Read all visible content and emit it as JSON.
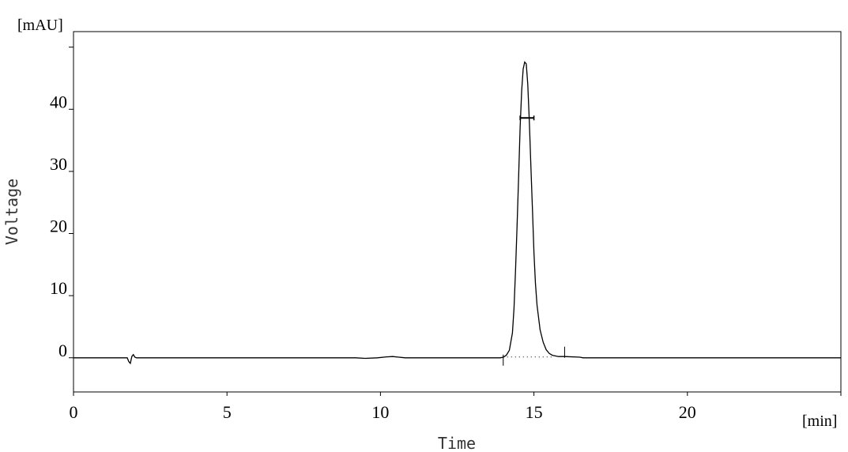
{
  "chart_data": {
    "type": "line",
    "xlabel": "Time",
    "ylabel": "Voltage",
    "x_unit": "[min]",
    "y_unit": "[mAU]",
    "xlim": [
      0,
      25
    ],
    "ylim": [
      -5.5,
      52.5
    ],
    "x_ticks": [
      0,
      5,
      10,
      15,
      20
    ],
    "y_ticks": [
      0,
      10,
      20,
      30,
      40
    ],
    "y_unlabeled_ticks": [
      50
    ],
    "grid": false,
    "line_color": "#000000",
    "series": [
      {
        "points": [
          [
            0,
            0
          ],
          [
            1.75,
            0
          ],
          [
            1.8,
            -0.6
          ],
          [
            1.85,
            -0.9
          ],
          [
            1.9,
            0.2
          ],
          [
            1.95,
            0.5
          ],
          [
            2.0,
            0.1
          ],
          [
            2.05,
            0
          ],
          [
            9.2,
            0
          ],
          [
            9.5,
            -0.1
          ],
          [
            9.9,
            0
          ],
          [
            10.2,
            0.15
          ],
          [
            10.4,
            0.2
          ],
          [
            10.6,
            0.1
          ],
          [
            10.8,
            0
          ],
          [
            13.9,
            0
          ],
          [
            14.0,
            0.1
          ],
          [
            14.1,
            0.4
          ],
          [
            14.2,
            1.2
          ],
          [
            14.3,
            4
          ],
          [
            14.35,
            8
          ],
          [
            14.4,
            14
          ],
          [
            14.45,
            21
          ],
          [
            14.5,
            29
          ],
          [
            14.55,
            37
          ],
          [
            14.6,
            43
          ],
          [
            14.65,
            46.5
          ],
          [
            14.7,
            47.6
          ],
          [
            14.75,
            47.3
          ],
          [
            14.8,
            44
          ],
          [
            14.85,
            38
          ],
          [
            14.9,
            31
          ],
          [
            14.95,
            24
          ],
          [
            15.0,
            17
          ],
          [
            15.05,
            12
          ],
          [
            15.1,
            8.5
          ],
          [
            15.2,
            4.5
          ],
          [
            15.3,
            2.5
          ],
          [
            15.4,
            1.3
          ],
          [
            15.5,
            0.7
          ],
          [
            15.6,
            0.4
          ],
          [
            15.8,
            0.2
          ],
          [
            16.0,
            0.2
          ],
          [
            16.5,
            0.1
          ],
          [
            16.6,
            0
          ],
          [
            25,
            0
          ]
        ]
      }
    ],
    "annotations": {
      "peak_start": 14.0,
      "peak_end": 16.0,
      "baseline": [
        14.0,
        15.6
      ],
      "width_marker": {
        "y": 38.6,
        "x": [
          14.55,
          15.0
        ]
      }
    }
  }
}
